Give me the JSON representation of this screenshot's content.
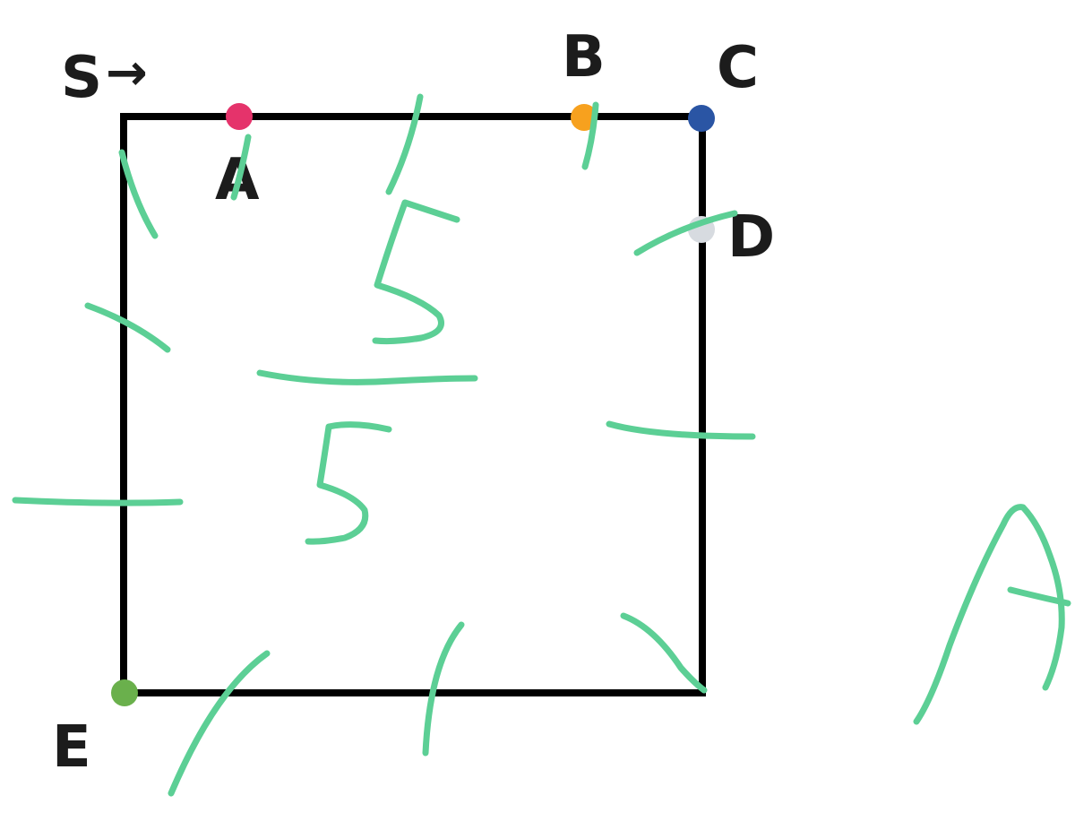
{
  "diagram": {
    "start": {
      "label": "S",
      "arrow": "→"
    },
    "points": [
      {
        "id": "A",
        "label": "A",
        "color": "#e5336b"
      },
      {
        "id": "B",
        "label": "B",
        "color": "#f7a11e"
      },
      {
        "id": "C",
        "label": "C",
        "color": "#2a55a4"
      },
      {
        "id": "D",
        "label": "D",
        "color": "#d7dbe0"
      },
      {
        "id": "E",
        "label": "E",
        "color": "#6ab04c"
      }
    ],
    "square_color": "#000000"
  },
  "annotations": {
    "ink_color": "#5ccf95",
    "fraction": {
      "numerator": "5",
      "denominator": "5"
    },
    "side_letter": "A"
  }
}
